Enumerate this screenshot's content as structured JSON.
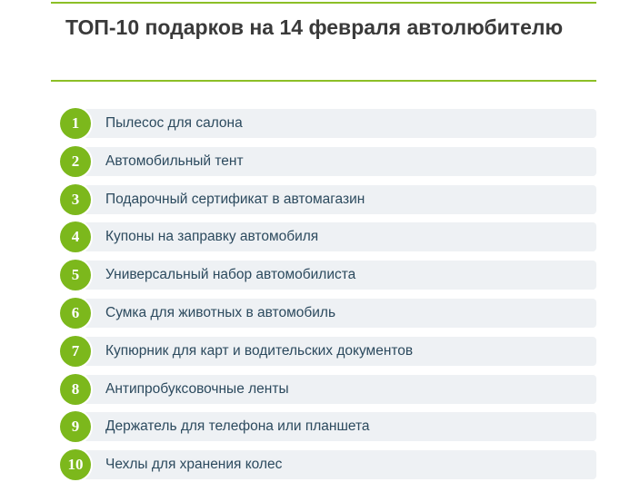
{
  "title": "ТОП-10 подарков на 14 февраля автолюбителю",
  "accent_color": "#8cbf26",
  "items": [
    {
      "number": "1",
      "label": "Пылесос для салона"
    },
    {
      "number": "2",
      "label": "Автомобильный тент"
    },
    {
      "number": "3",
      "label": "Подарочный сертификат в автомагазин"
    },
    {
      "number": "4",
      "label": "Купоны на заправку автомобиля"
    },
    {
      "number": "5",
      "label": "Универсальный набор автомобилиста"
    },
    {
      "number": "6",
      "label": "Сумка для животных в автомобиль"
    },
    {
      "number": "7",
      "label": "Купюрник для карт и водительских документов"
    },
    {
      "number": "8",
      "label": "Антипробуксовочные ленты"
    },
    {
      "number": "9",
      "label": "Держатель для телефона или планшета"
    },
    {
      "number": "10",
      "label": "Чехлы для хранения колес"
    }
  ]
}
